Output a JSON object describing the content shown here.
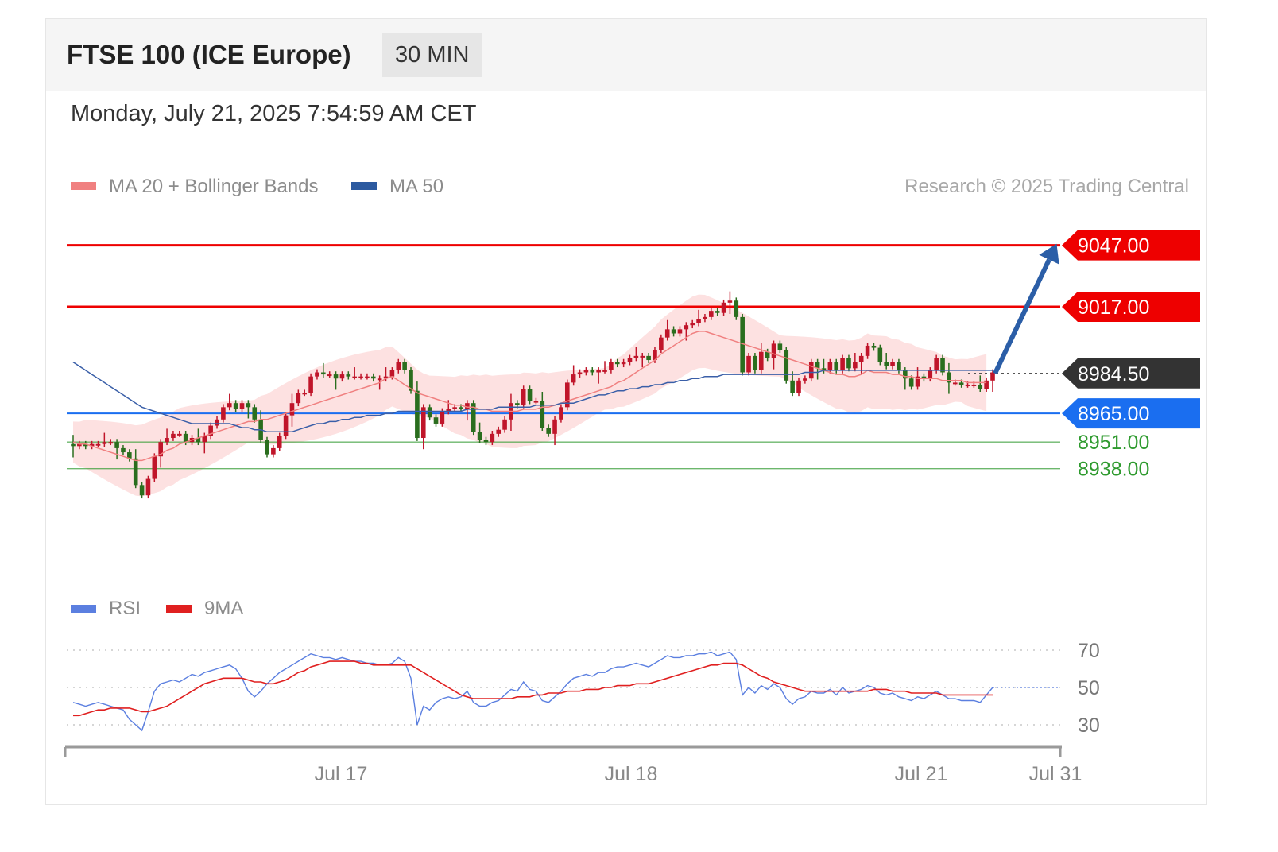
{
  "header": {
    "title": "FTSE 100 (ICE Europe)",
    "timeframe": "30 MIN",
    "datetime": "Monday, July 21, 2025 7:54:59 AM CET",
    "credit": "Research © 2025 Trading Central"
  },
  "legend": {
    "main": [
      {
        "label": "MA 20 + Bollinger Bands",
        "color": "#f08080"
      },
      {
        "label": "MA 50",
        "color": "#2c5aa0"
      }
    ],
    "rsi": [
      {
        "label": "RSI",
        "color": "#5b7fe0"
      },
      {
        "label": "9MA",
        "color": "#e02020"
      }
    ]
  },
  "colors": {
    "resistance": "#ee0000",
    "pivot": "#1a6ef0",
    "support": "#2e9a2e",
    "current": "#333333",
    "candle_up": "#c0152a",
    "candle_down": "#2a6e1e",
    "bands": "#fde1e1",
    "arrow": "#2b5ea7"
  },
  "chart_data": [
    {
      "type": "candlestick",
      "title": "FTSE 100 (ICE Europe)",
      "ylim": [
        8915,
        9055
      ],
      "x_ticks": [
        "Jul 17",
        "Jul 18",
        "Jul 21",
        "Jul 31"
      ],
      "levels": [
        {
          "value": 9047.0,
          "label": "9047.00",
          "role": "resistance"
        },
        {
          "value": 9017.0,
          "label": "9017.00",
          "role": "resistance"
        },
        {
          "value": 8984.5,
          "label": "8984.50",
          "role": "current"
        },
        {
          "value": 8965.0,
          "label": "8965.00",
          "role": "pivot"
        },
        {
          "value": 8951.0,
          "label": "8951.00",
          "role": "support"
        },
        {
          "value": 8938.0,
          "label": "8938.00",
          "role": "support"
        }
      ],
      "close": [
        8949,
        8950,
        8949,
        8950,
        8950,
        8951,
        8951,
        8948,
        8946,
        8943,
        8930,
        8925,
        8933,
        8944,
        8951,
        8953,
        8955,
        8955,
        8951,
        8953,
        8951,
        8954,
        8959,
        8962,
        8968,
        8970,
        8967,
        8970,
        8968,
        8962,
        8952,
        8945,
        8948,
        8954,
        8964,
        8970,
        8975,
        8975,
        8983,
        8985,
        8984,
        8984,
        8982,
        8984,
        8983,
        8983,
        8983,
        8983,
        8982,
        8982,
        8983,
        8986,
        8990,
        8986,
        8976,
        8953,
        8968,
        8963,
        8960,
        8966,
        8967,
        8968,
        8967,
        8970,
        8956,
        8952,
        8951,
        8955,
        8957,
        8962,
        8970,
        8969,
        8977,
        8971,
        8971,
        8958,
        8955,
        8962,
        8968,
        8980,
        8984,
        8985,
        8986,
        8985,
        8986,
        8986,
        8990,
        8989,
        8990,
        8992,
        8993,
        8993,
        8991,
        8996,
        9002,
        9006,
        9004,
        9006,
        9008,
        9009,
        9011,
        9012,
        9015,
        9014,
        9019,
        9020,
        9012,
        8985,
        8993,
        8986,
        8995,
        8992,
        8999,
        8996,
        8981,
        8975,
        8981,
        8982,
        8990,
        8987,
        8986,
        8990,
        8986,
        8992,
        8987,
        8990,
        8993,
        8998,
        8997,
        8990,
        8988,
        8990,
        8986,
        8982,
        8978,
        8983,
        8982,
        8986,
        8992,
        8985,
        8980,
        8980,
        8979,
        8979,
        8979,
        8977,
        8981,
        8985
      ],
      "ma20": [
        8951,
        8950,
        8950,
        8949,
        8948,
        8947,
        8946,
        8945,
        8944,
        8943,
        8942,
        8942,
        8943,
        8944,
        8945,
        8947,
        8948,
        8950,
        8951,
        8952,
        8953,
        8954,
        8955,
        8956,
        8957,
        8958,
        8959,
        8960,
        8961,
        8961,
        8962,
        8962,
        8963,
        8964,
        8965,
        8966,
        8967,
        8968,
        8969,
        8970,
        8971,
        8972,
        8973,
        8974,
        8975,
        8976,
        8977,
        8978,
        8979,
        8980,
        8982,
        8983,
        8981,
        8979,
        8977,
        8975,
        8974,
        8973,
        8972,
        8971,
        8970,
        8969,
        8969,
        8968,
        8968,
        8967,
        8967,
        8966,
        8966,
        8966,
        8966,
        8966,
        8967,
        8967,
        8967,
        8968,
        8968,
        8969,
        8970,
        8971,
        8972,
        8973,
        8974,
        8975,
        8976,
        8977,
        8978,
        8980,
        8981,
        8983,
        8985,
        8987,
        8989,
        8991,
        8994,
        8996,
        8998,
        9000,
        9002,
        9004,
        9005,
        9005,
        9004,
        9003,
        9002,
        9001,
        9000,
        8999,
        8998,
        8997,
        8996,
        8995,
        8994,
        8993,
        8992,
        8991,
        8990,
        8989,
        8988,
        8987,
        8986,
        8985,
        8984,
        8984,
        8983,
        8983,
        8984,
        8986,
        8985,
        8985,
        8985,
        8984,
        8984,
        8983,
        8983,
        8982,
        8982,
        8982,
        8982,
        8981,
        8981,
        8981,
        8981,
        8980,
        8980,
        8980,
        8980
      ],
      "ma50": [
        8990,
        8988,
        8986,
        8984,
        8982,
        8980,
        8978,
        8976,
        8974,
        8972,
        8970,
        8968,
        8967,
        8966,
        8965,
        8964,
        8963,
        8962,
        8961,
        8960,
        8960,
        8960,
        8960,
        8960,
        8960,
        8960,
        8959,
        8958,
        8958,
        8957,
        8957,
        8956,
        8956,
        8956,
        8956,
        8956,
        8957,
        8958,
        8959,
        8960,
        8960,
        8961,
        8961,
        8962,
        8962,
        8963,
        8963,
        8964,
        8964,
        8964,
        8965,
        8965,
        8966,
        8966,
        8966,
        8966,
        8966,
        8966,
        8966,
        8966,
        8966,
        8966,
        8966,
        8967,
        8967,
        8967,
        8967,
        8967,
        8968,
        8968,
        8968,
        8968,
        8968,
        8968,
        8969,
        8969,
        8969,
        8969,
        8970,
        8970,
        8970,
        8971,
        8972,
        8973,
        8974,
        8974,
        8975,
        8976,
        8976,
        8977,
        8977,
        8978,
        8978,
        8979,
        8979,
        8980,
        8980,
        8981,
        8981,
        8982,
        8982,
        8983,
        8983,
        8983,
        8984,
        8984,
        8984,
        8984,
        8984,
        8984,
        8984,
        8984,
        8984,
        8984,
        8984,
        8984,
        8984,
        8985,
        8985,
        8985,
        8986,
        8986,
        8986,
        8986,
        8986,
        8986,
        8986,
        8986,
        8986,
        8986,
        8986,
        8986,
        8986,
        8986,
        8986,
        8986,
        8986,
        8986,
        8986,
        8986,
        8986,
        8986,
        8986,
        8986,
        8986,
        8986,
        8986,
        8986
      ]
    },
    {
      "type": "line",
      "ylim": [
        25,
        75
      ],
      "y_ticks": [
        70,
        50,
        30
      ],
      "series": [
        {
          "name": "RSI",
          "values": [
            42,
            41,
            40,
            41,
            42,
            41,
            40,
            39,
            38,
            33,
            30,
            27,
            37,
            48,
            52,
            53,
            54,
            53,
            55,
            57,
            56,
            58,
            59,
            60,
            61,
            62,
            60,
            55,
            48,
            45,
            48,
            52,
            55,
            58,
            60,
            62,
            64,
            66,
            68,
            67,
            66,
            66,
            65,
            66,
            65,
            64,
            64,
            63,
            63,
            62,
            62,
            63,
            66,
            64,
            55,
            30,
            40,
            38,
            42,
            44,
            45,
            44,
            45,
            48,
            42,
            40,
            40,
            42,
            43,
            46,
            49,
            48,
            53,
            49,
            48,
            43,
            42,
            45,
            48,
            52,
            55,
            56,
            57,
            56,
            58,
            58,
            60,
            61,
            61,
            62,
            63,
            62,
            61,
            63,
            65,
            67,
            66,
            66,
            67,
            67,
            68,
            68,
            69,
            67,
            68,
            69,
            65,
            46,
            50,
            47,
            51,
            49,
            52,
            50,
            44,
            41,
            44,
            45,
            48,
            47,
            47,
            49,
            46,
            50,
            47,
            48,
            49,
            51,
            50,
            47,
            46,
            47,
            45,
            44,
            43,
            45,
            44,
            46,
            48,
            46,
            44,
            44,
            43,
            43,
            43,
            42,
            46,
            50
          ]
        },
        {
          "name": "9MA",
          "values": [
            35,
            35,
            36,
            37,
            38,
            38,
            39,
            39,
            39,
            39,
            38,
            37,
            37,
            38,
            39,
            40,
            42,
            44,
            46,
            48,
            50,
            52,
            53,
            54,
            55,
            55,
            55,
            55,
            54,
            53,
            53,
            52,
            52,
            53,
            54,
            56,
            58,
            59,
            61,
            62,
            63,
            64,
            64,
            64,
            64,
            64,
            63,
            63,
            62,
            62,
            62,
            62,
            62,
            62,
            62,
            60,
            58,
            56,
            54,
            52,
            50,
            48,
            46,
            45,
            44,
            44,
            44,
            44,
            44,
            44,
            44,
            45,
            45,
            45,
            46,
            46,
            47,
            47,
            47,
            48,
            48,
            48,
            49,
            49,
            49,
            50,
            50,
            51,
            51,
            51,
            52,
            52,
            52,
            53,
            54,
            55,
            56,
            57,
            58,
            59,
            60,
            61,
            62,
            62,
            63,
            63,
            63,
            62,
            60,
            58,
            56,
            55,
            53,
            52,
            51,
            50,
            49,
            48,
            48,
            48,
            48,
            48,
            48,
            48,
            48,
            48,
            48,
            48,
            49,
            49,
            49,
            48,
            48,
            48,
            47,
            47,
            47,
            47,
            47,
            46,
            46,
            46,
            46,
            46,
            46,
            46,
            46,
            46
          ]
        }
      ]
    }
  ]
}
